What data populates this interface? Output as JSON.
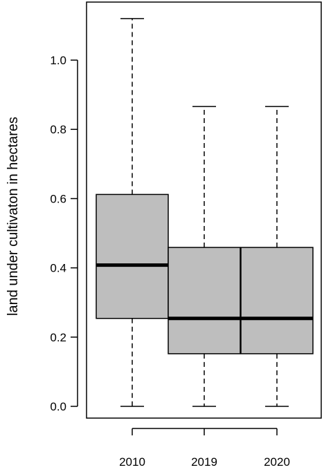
{
  "chart_data": {
    "type": "boxplot",
    "title": "",
    "xlabel": "",
    "ylabel": "land under cultivaton in hectares",
    "ylim": [
      -0.05,
      1.17
    ],
    "yticks": [
      0.0,
      0.2,
      0.4,
      0.6,
      0.8,
      1.0
    ],
    "ytick_labels": [
      "0.0",
      "0.2",
      "0.4",
      "0.6",
      "0.8",
      "1.0"
    ],
    "categories": [
      "2010",
      "2019",
      "2020"
    ],
    "box_fill": "#bebebe",
    "line_color": "#000000",
    "boxes": [
      {
        "label": "2010",
        "whisker_low": 0.0,
        "q1": 0.254,
        "median": 0.408,
        "q3": 0.612,
        "whisker_high": 1.12
      },
      {
        "label": "2019",
        "whisker_low": 0.0,
        "q1": 0.152,
        "median": 0.254,
        "q3": 0.459,
        "whisker_high": 0.866
      },
      {
        "label": "2020",
        "whisker_low": 0.0,
        "q1": 0.152,
        "median": 0.254,
        "q3": 0.459,
        "whisker_high": 0.866
      }
    ]
  }
}
